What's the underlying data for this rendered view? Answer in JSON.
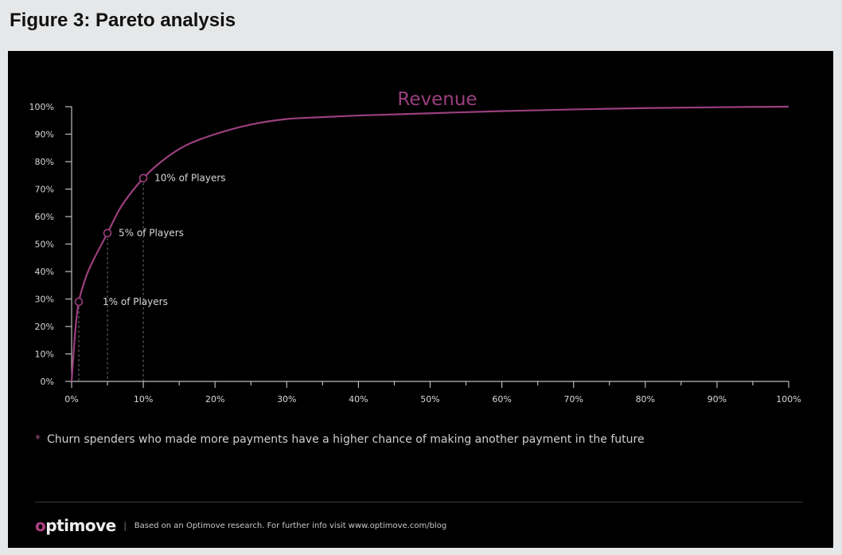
{
  "figure_title": "Figure 3: Pareto analysis",
  "note": {
    "star": "*",
    "text": "Churn spenders who made more payments have a higher chance of making another payment in the future"
  },
  "footer": {
    "logo_prefix": "o",
    "logo_rest": "ptimove",
    "separator": "|",
    "credit": "Based on an Optimove research. For further info visit www.optimove.com/blog"
  },
  "colors": {
    "curve": "#9b3f7f",
    "background": "#000000",
    "axis": "#bdbdbd",
    "text": "#d8d8d8"
  },
  "chart_data": {
    "type": "line",
    "title": "",
    "series": [
      {
        "name": "Revenue",
        "x": [
          0,
          0.5,
          1,
          2,
          3,
          5,
          7,
          10,
          13,
          16,
          20,
          25,
          30,
          35,
          40,
          50,
          60,
          70,
          80,
          90,
          100
        ],
        "y": [
          0,
          18,
          29,
          38,
          44,
          54,
          64,
          74,
          81,
          86,
          90,
          93.5,
          95.5,
          96.2,
          96.8,
          97.6,
          98.4,
          99,
          99.5,
          99.8,
          100
        ]
      }
    ],
    "annotations": [
      {
        "x": 1,
        "y": 29,
        "label": "1% of Players"
      },
      {
        "x": 5,
        "y": 54,
        "label": "5% of Players"
      },
      {
        "x": 10,
        "y": 74,
        "label": "10% of Players"
      }
    ],
    "xlim": [
      0,
      100
    ],
    "ylim": [
      0,
      100
    ],
    "x_ticks": [
      0,
      10,
      20,
      30,
      40,
      50,
      60,
      70,
      80,
      90,
      100
    ],
    "x_tick_labels": [
      "0%",
      "10%",
      "20%",
      "30%",
      "40%",
      "50%",
      "60%",
      "70%",
      "80%",
      "90%",
      "100%"
    ],
    "y_ticks": [
      0,
      10,
      20,
      30,
      40,
      50,
      60,
      70,
      80,
      90,
      100
    ],
    "y_tick_labels": [
      "0%",
      "10%",
      "20%",
      "30%",
      "40%",
      "50%",
      "60%",
      "70%",
      "80%",
      "90%",
      "100%"
    ],
    "grid": false,
    "legend": "top-center"
  }
}
